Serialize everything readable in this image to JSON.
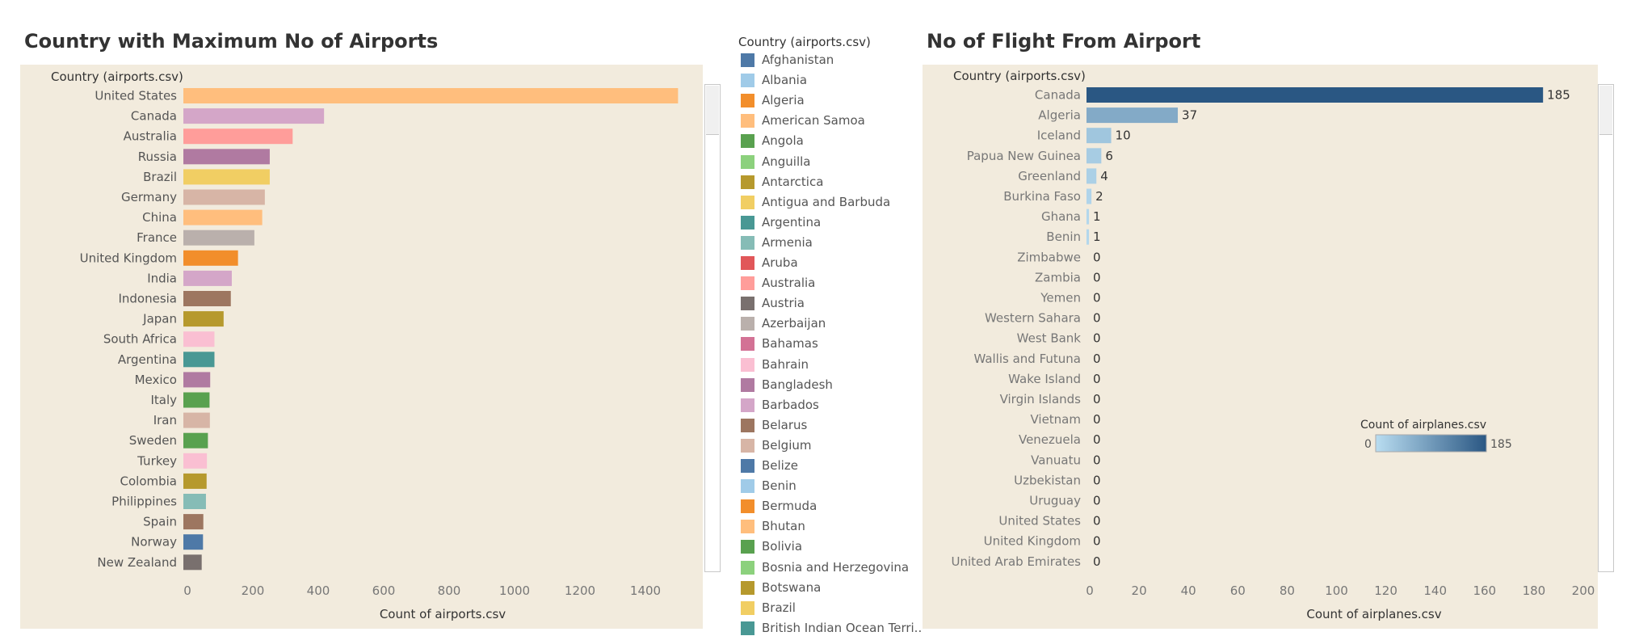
{
  "left_chart": {
    "title": "Country with Maximum No of Airports",
    "row_header": "Country (airports.csv)",
    "xlabel": "Count of airports.csv"
  },
  "right_chart": {
    "title": "No of Flight From Airport",
    "row_header": "Country (airports.csv)",
    "xlabel": "Count of airplanes.csv",
    "colorscale": {
      "title": "Count of airplanes.csv",
      "min_label": "0",
      "max_label": "185",
      "low": "#b9ddf1",
      "high": "#2a5783"
    }
  },
  "legend": {
    "title": "Country (airports.csv)",
    "items": [
      {
        "label": "Afghanistan",
        "color": "#4e79a7"
      },
      {
        "label": "Albania",
        "color": "#a0cbe8"
      },
      {
        "label": "Algeria",
        "color": "#f28e2b"
      },
      {
        "label": "American Samoa",
        "color": "#ffbe7d"
      },
      {
        "label": "Angola",
        "color": "#59a14f"
      },
      {
        "label": "Anguilla",
        "color": "#8cd17d"
      },
      {
        "label": "Antarctica",
        "color": "#b6992d"
      },
      {
        "label": "Antigua and Barbuda",
        "color": "#f1ce63"
      },
      {
        "label": "Argentina",
        "color": "#499894"
      },
      {
        "label": "Armenia",
        "color": "#86bcb6"
      },
      {
        "label": "Aruba",
        "color": "#e15759"
      },
      {
        "label": "Australia",
        "color": "#ff9d9a"
      },
      {
        "label": "Austria",
        "color": "#79706e"
      },
      {
        "label": "Azerbaijan",
        "color": "#bab0ac"
      },
      {
        "label": "Bahamas",
        "color": "#d37295"
      },
      {
        "label": "Bahrain",
        "color": "#fabfd2"
      },
      {
        "label": "Bangladesh",
        "color": "#b07aa1"
      },
      {
        "label": "Barbados",
        "color": "#d4a6c8"
      },
      {
        "label": "Belarus",
        "color": "#9d7660"
      },
      {
        "label": "Belgium",
        "color": "#d7b5a6"
      },
      {
        "label": "Belize",
        "color": "#4e79a7"
      },
      {
        "label": "Benin",
        "color": "#a0cbe8"
      },
      {
        "label": "Bermuda",
        "color": "#f28e2b"
      },
      {
        "label": "Bhutan",
        "color": "#ffbe7d"
      },
      {
        "label": "Bolivia",
        "color": "#59a14f"
      },
      {
        "label": "Bosnia and Herzegovina",
        "color": "#8cd17d"
      },
      {
        "label": "Botswana",
        "color": "#b6992d"
      },
      {
        "label": "Brazil",
        "color": "#f1ce63"
      },
      {
        "label": "British Indian Ocean Terri..",
        "color": "#499894"
      }
    ]
  },
  "chart_data": [
    {
      "type": "bar",
      "orientation": "horizontal",
      "title": "Country with Maximum No of Airports",
      "xlabel": "Count of airports.csv",
      "ylabel": "Country (airports.csv)",
      "xlim": [
        0,
        1500
      ],
      "xticks": [
        0,
        200,
        400,
        600,
        800,
        1000,
        1200,
        1400
      ],
      "grid": false,
      "categories": [
        "United States",
        "Canada",
        "Australia",
        "Russia",
        "Brazil",
        "Germany",
        "China",
        "France",
        "United Kingdom",
        "India",
        "Indonesia",
        "Japan",
        "South Africa",
        "Argentina",
        "Mexico",
        "Italy",
        "Iran",
        "Sweden",
        "Turkey",
        "Colombia",
        "Philippines",
        "Spain",
        "Norway",
        "New Zealand"
      ],
      "values": [
        1512,
        430,
        334,
        264,
        264,
        249,
        241,
        217,
        167,
        148,
        145,
        123,
        95,
        95,
        82,
        80,
        81,
        75,
        72,
        71,
        69,
        61,
        60,
        56
      ],
      "colors": [
        "#ffbe7d",
        "#d4a6c8",
        "#ff9d9a",
        "#b07aa1",
        "#f1ce63",
        "#d7b5a6",
        "#ffbe7d",
        "#bab0ac",
        "#f28e2b",
        "#d4a6c8",
        "#9d7660",
        "#b6992d",
        "#fabfd2",
        "#499894",
        "#b07aa1",
        "#59a14f",
        "#d7b5a6",
        "#59a14f",
        "#fabfd2",
        "#b6992d",
        "#86bcb6",
        "#9d7660",
        "#4e79a7",
        "#79706e"
      ]
    },
    {
      "type": "bar",
      "orientation": "horizontal",
      "title": "No of Flight From Airport",
      "xlabel": "Count of airplanes.csv",
      "ylabel": "Country (airports.csv)",
      "xlim": [
        0,
        200
      ],
      "xticks": [
        0,
        20,
        40,
        60,
        80,
        100,
        120,
        140,
        160,
        180,
        200
      ],
      "grid": false,
      "categories": [
        "Canada",
        "Algeria",
        "Iceland",
        "Papua New Guinea",
        "Greenland",
        "Burkina Faso",
        "Ghana",
        "Benin",
        "Zimbabwe",
        "Zambia",
        "Yemen",
        "Western Sahara",
        "West Bank",
        "Wallis and Futuna",
        "Wake Island",
        "Virgin Islands",
        "Vietnam",
        "Venezuela",
        "Vanuatu",
        "Uzbekistan",
        "Uruguay",
        "United States",
        "United Kingdom",
        "United Arab Emirates"
      ],
      "values": [
        185,
        37,
        10,
        6,
        4,
        2,
        1,
        1,
        0,
        0,
        0,
        0,
        0,
        0,
        0,
        0,
        0,
        0,
        0,
        0,
        0,
        0,
        0,
        0
      ],
      "data_labels": true,
      "color_scale": {
        "min": 0,
        "max": 185
      }
    }
  ]
}
